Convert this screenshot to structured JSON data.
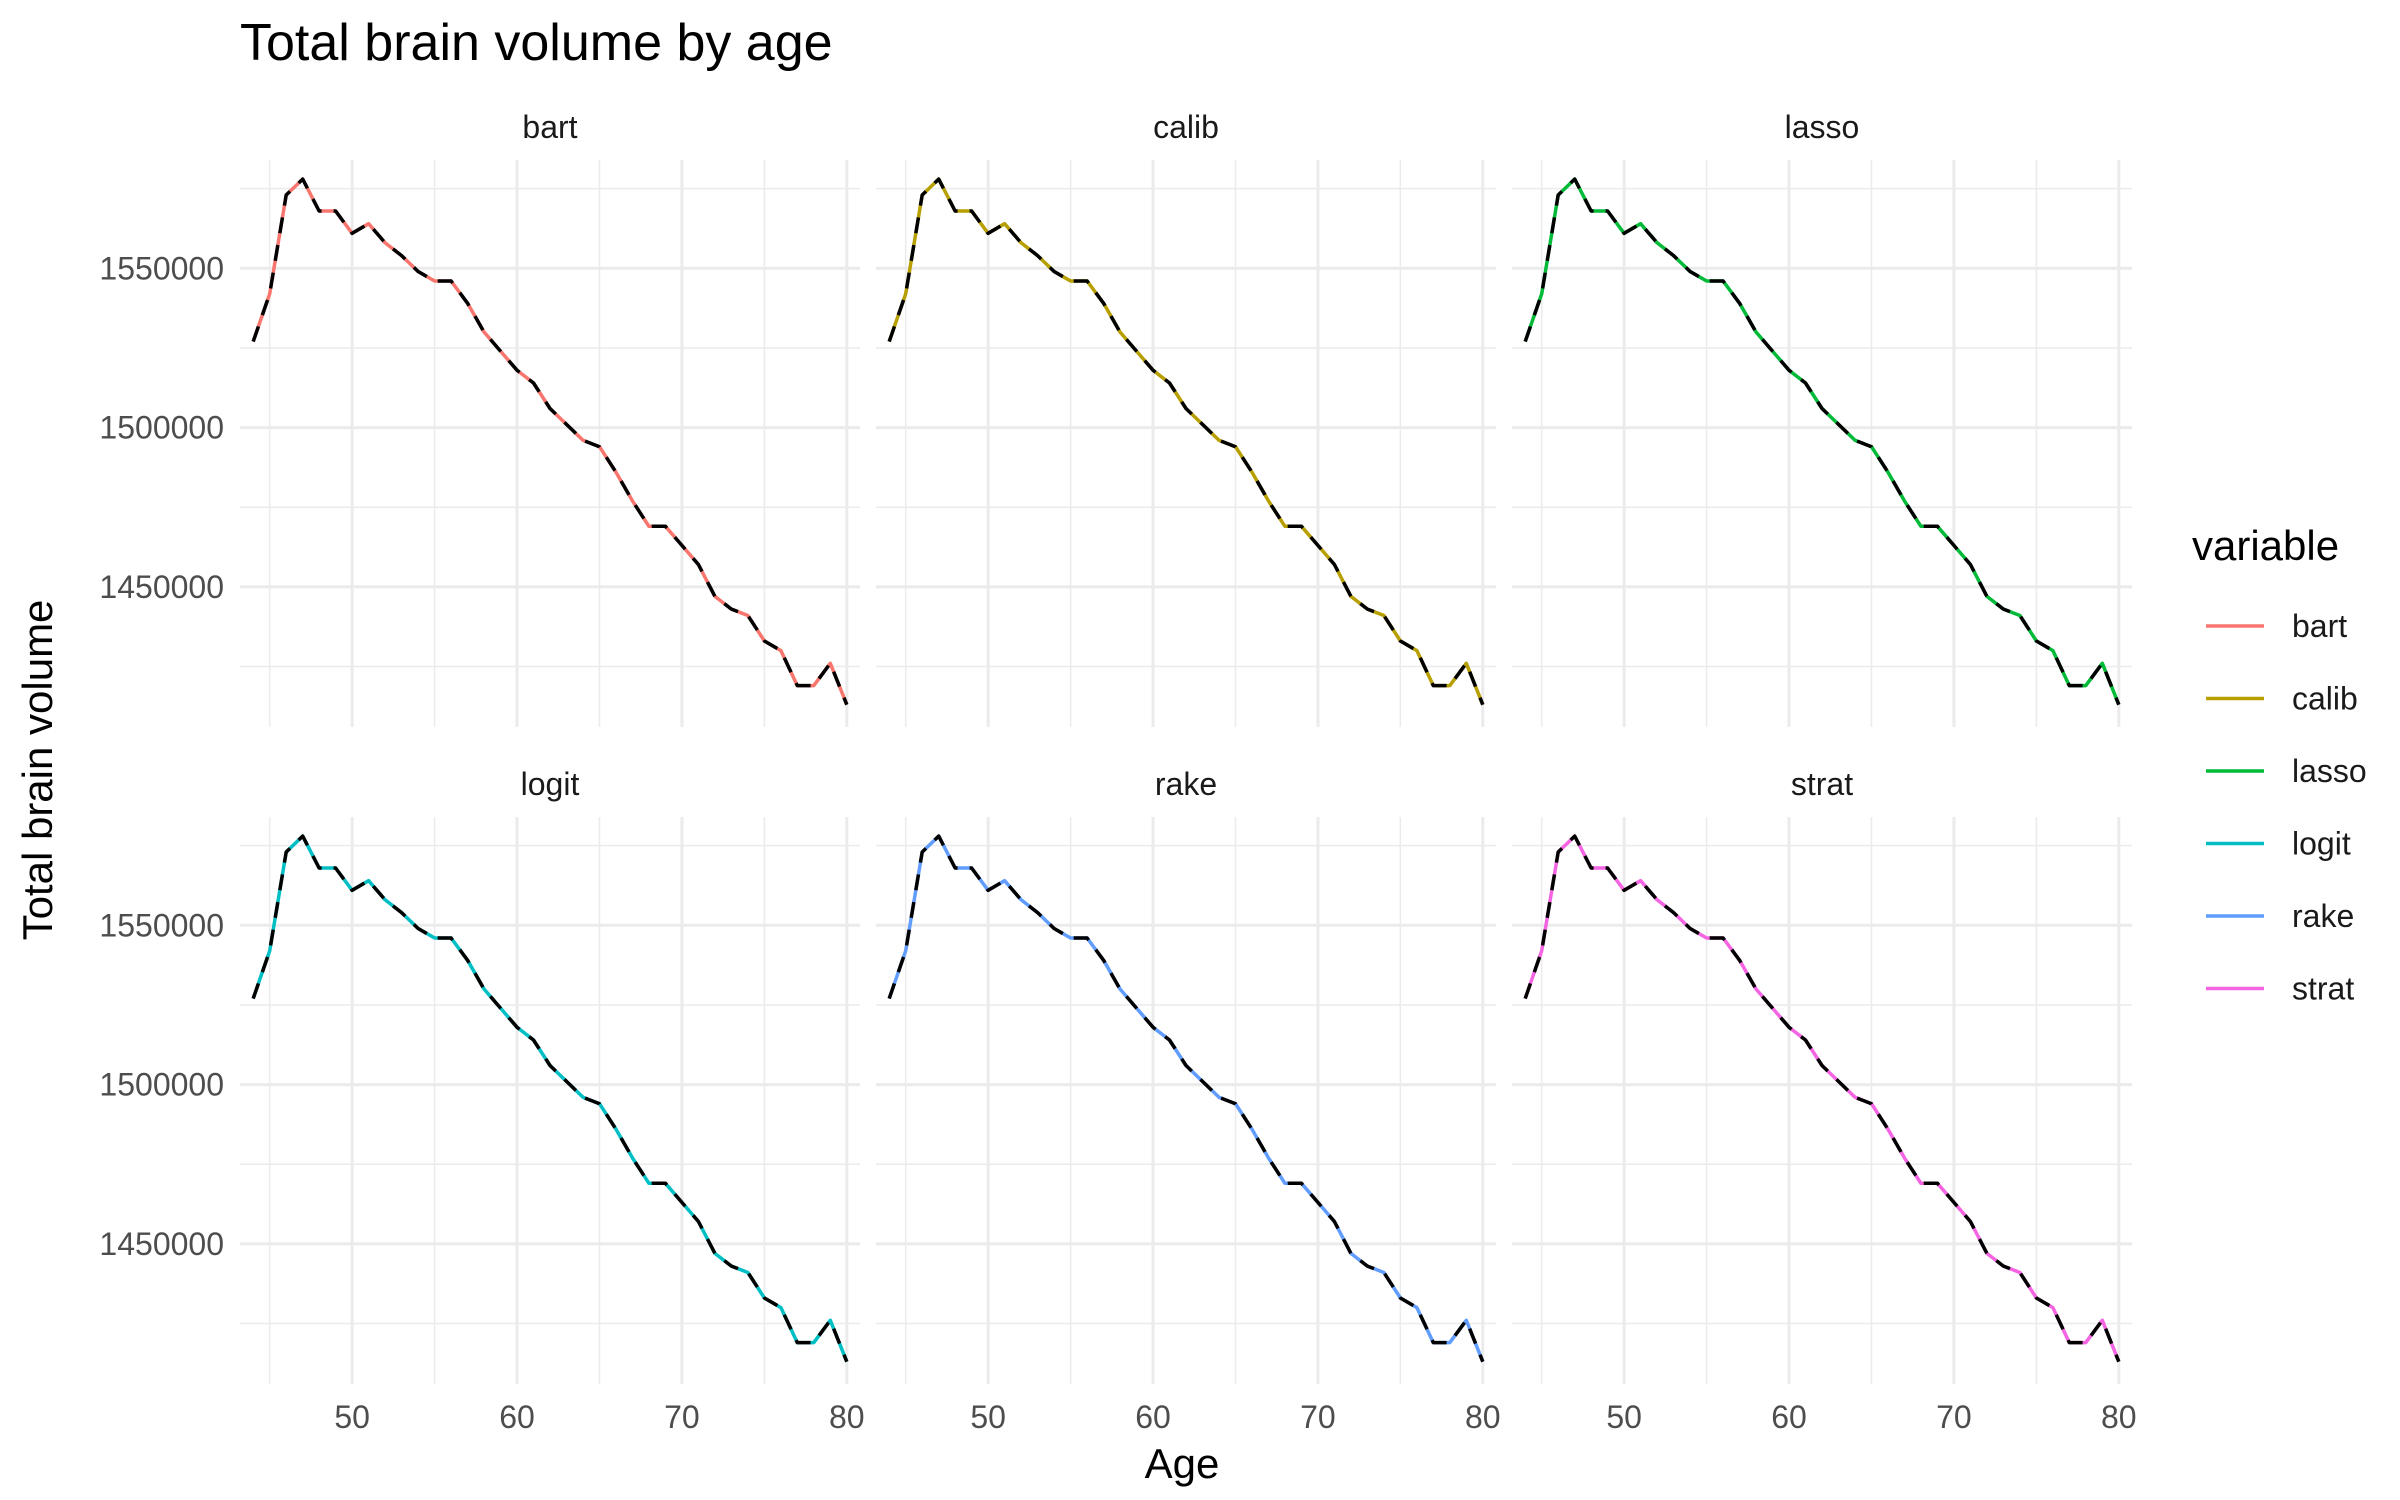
{
  "chart_data": {
    "type": "line",
    "title": "Total brain volume by age",
    "xlabel": "Age",
    "ylabel": "Total brain volume",
    "xlim": [
      43.2,
      80.8
    ],
    "ylim": [
      1406000,
      1584000
    ],
    "x_ticks": [
      "50",
      "60",
      "70",
      "80"
    ],
    "x_tick_values": [
      50,
      60,
      70,
      80
    ],
    "x_minor_values": [
      45,
      55,
      65,
      75
    ],
    "y_ticks": [
      "1450000",
      "1500000",
      "1550000"
    ],
    "y_tick_values": [
      1450000,
      1500000,
      1550000
    ],
    "y_minor_values": [
      1425000,
      1475000,
      1525000,
      1575000
    ],
    "layout": "facet 2x3",
    "grid": true,
    "legend_title": "variable",
    "legend_position": "right",
    "reference_line": {
      "style": "dashed",
      "color": "#000000"
    },
    "x": [
      44,
      45,
      46,
      47,
      48,
      49,
      50,
      51,
      52,
      53,
      54,
      55,
      56,
      57,
      58,
      59,
      60,
      61,
      62,
      63,
      64,
      65,
      66,
      67,
      68,
      69,
      70,
      71,
      72,
      73,
      74,
      75,
      76,
      77,
      78,
      79,
      80
    ],
    "values": [
      1527000,
      1542000,
      1573000,
      1578000,
      1568000,
      1568000,
      1561000,
      1564000,
      1558000,
      1554000,
      1549000,
      1546000,
      1546000,
      1539000,
      1530000,
      1524000,
      1518000,
      1514000,
      1506000,
      1501000,
      1496000,
      1494000,
      1486000,
      1477000,
      1469000,
      1469000,
      1463000,
      1457000,
      1447000,
      1443000,
      1441000,
      1433000,
      1430000,
      1419000,
      1419000,
      1426000,
      1413000
    ],
    "series": [
      {
        "name": "bart",
        "color": "#F8766D"
      },
      {
        "name": "calib",
        "color": "#B79F00"
      },
      {
        "name": "lasso",
        "color": "#00BA38"
      },
      {
        "name": "logit",
        "color": "#00BFC4"
      },
      {
        "name": "rake",
        "color": "#619CFF"
      },
      {
        "name": "strat",
        "color": "#F564E3"
      }
    ]
  }
}
